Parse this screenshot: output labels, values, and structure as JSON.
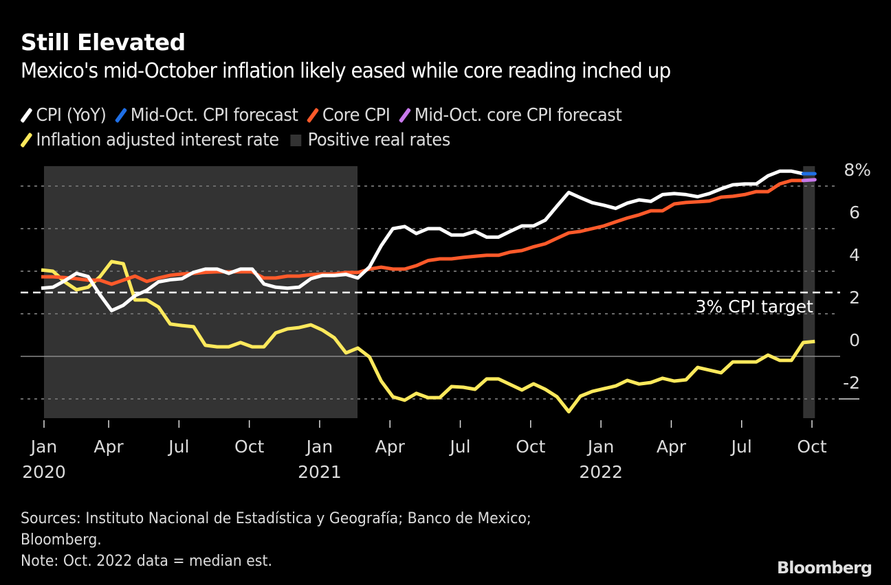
{
  "chart_data": {
    "type": "line",
    "title": "Still Elevated",
    "subtitle": "Mexico's mid-October inflation likely eased while core reading inched up",
    "frequency": "semi-monthly (first and second half of each month), Jan 2020 (1H) to Oct 2022 (2H)",
    "ylabel": "%",
    "ylim": [
      -2.5,
      9
    ],
    "yticks": [
      -2,
      0,
      2,
      4,
      6,
      8
    ],
    "ytick_labels": [
      "-2",
      "0",
      "2",
      "4",
      "6",
      "8%"
    ],
    "xticks": [
      {
        "label": "Jan",
        "year": "2020",
        "index": 0
      },
      {
        "label": "Apr",
        "year": "",
        "index": 6
      },
      {
        "label": "Jul",
        "year": "",
        "index": 12
      },
      {
        "label": "Oct",
        "year": "",
        "index": 18
      },
      {
        "label": "Jan",
        "year": "2021",
        "index": 24
      },
      {
        "label": "Apr",
        "year": "",
        "index": 30
      },
      {
        "label": "Jul",
        "year": "",
        "index": 36
      },
      {
        "label": "Oct",
        "year": "",
        "index": 42
      },
      {
        "label": "Jan",
        "year": "2022",
        "index": 48
      },
      {
        "label": "Apr",
        "year": "",
        "index": 54
      },
      {
        "label": "Jul",
        "year": "",
        "index": 60
      },
      {
        "label": "Oct",
        "year": "",
        "index": 66
      }
    ],
    "n_points": 67,
    "grid": true,
    "legend_position": "top-left",
    "reference_line": {
      "value": 3,
      "label": "3% CPI target",
      "style": "dashed"
    },
    "shaded_regions": [
      {
        "name": "Positive real rates",
        "start_index": 0,
        "end_index": 27.3
      },
      {
        "name": "Oct. 2022 estimate",
        "start_index": 65,
        "end_index": 66
      }
    ],
    "series": [
      {
        "name": "CPI (YoY)",
        "color": "#ffffff",
        "start_index": 0,
        "values": [
          3.2,
          3.25,
          3.55,
          3.9,
          3.75,
          2.9,
          2.15,
          2.4,
          2.85,
          3.1,
          3.5,
          3.6,
          3.65,
          3.95,
          4.1,
          4.1,
          3.9,
          4.1,
          4.1,
          3.4,
          3.25,
          3.2,
          3.25,
          3.65,
          3.8,
          3.8,
          3.85,
          3.68,
          4.2,
          5.2,
          6.0,
          6.1,
          5.77,
          6.0,
          6.0,
          5.7,
          5.7,
          5.87,
          5.6,
          5.6,
          5.87,
          6.13,
          6.13,
          6.4,
          7.06,
          7.7,
          7.45,
          7.22,
          7.1,
          6.95,
          7.2,
          7.35,
          7.28,
          7.6,
          7.65,
          7.6,
          7.5,
          7.65,
          7.87,
          8.06,
          8.1,
          8.1,
          8.48,
          8.7,
          8.7,
          8.58
        ]
      },
      {
        "name": "Mid-Oct. CPI forecast",
        "color": "#1f6fe6",
        "start_index": 65,
        "values": [
          8.58,
          8.58
        ]
      },
      {
        "name": "Core CPI",
        "color": "#ff5a2a",
        "start_index": 0,
        "values": [
          3.74,
          3.74,
          3.7,
          3.65,
          3.58,
          3.58,
          3.39,
          3.58,
          3.77,
          3.52,
          3.68,
          3.81,
          3.87,
          3.9,
          3.95,
          3.97,
          3.97,
          3.97,
          3.97,
          3.68,
          3.68,
          3.77,
          3.77,
          3.84,
          3.87,
          3.87,
          3.94,
          3.94,
          4.1,
          4.19,
          4.1,
          4.1,
          4.26,
          4.5,
          4.58,
          4.58,
          4.65,
          4.7,
          4.75,
          4.75,
          4.9,
          4.97,
          5.15,
          5.29,
          5.55,
          5.8,
          5.87,
          6.0,
          6.13,
          6.32,
          6.5,
          6.65,
          6.84,
          6.84,
          7.16,
          7.23,
          7.26,
          7.3,
          7.48,
          7.52,
          7.6,
          7.74,
          7.74,
          8.1,
          8.26,
          8.26
        ]
      },
      {
        "name": "Mid-Oct. core CPI forecast",
        "color": "#c878ec",
        "start_index": 65,
        "values": [
          8.26,
          8.3
        ]
      },
      {
        "name": "Inflation adjusted interest rate",
        "color": "#fde95c",
        "start_index": 0,
        "values": [
          4.06,
          4.0,
          3.5,
          3.13,
          3.25,
          3.74,
          4.45,
          4.35,
          2.65,
          2.65,
          2.32,
          1.52,
          1.45,
          1.39,
          0.52,
          0.45,
          0.45,
          0.65,
          0.45,
          0.45,
          1.1,
          1.29,
          1.35,
          1.48,
          1.23,
          0.87,
          0.16,
          0.39,
          -0.03,
          -1.16,
          -1.9,
          -2.06,
          -1.74,
          -1.94,
          -1.94,
          -1.42,
          -1.45,
          -1.55,
          -1.06,
          -1.06,
          -1.32,
          -1.58,
          -1.29,
          -1.55,
          -1.9,
          -2.6,
          -1.87,
          -1.65,
          -1.52,
          -1.39,
          -1.13,
          -1.3,
          -1.23,
          -1.03,
          -1.16,
          -1.1,
          -0.52,
          -0.65,
          -0.77,
          -0.26,
          -0.26,
          -0.26,
          0.06,
          -0.19,
          -0.19,
          0.65,
          0.7
        ]
      }
    ]
  },
  "legend": {
    "items": [
      {
        "label": "CPI (YoY)",
        "color": "#ffffff",
        "kind": "line"
      },
      {
        "label": "Mid-Oct. CPI forecast",
        "color": "#1f6fe6",
        "kind": "line"
      },
      {
        "label": "Core CPI",
        "color": "#ff5a2a",
        "kind": "line"
      },
      {
        "label": "Mid-Oct. core CPI forecast",
        "color": "#c878ec",
        "kind": "line"
      },
      {
        "label": "Inflation adjusted interest rate",
        "color": "#fde95c",
        "kind": "line"
      },
      {
        "label": "Positive real rates",
        "color": "#333333",
        "kind": "box"
      }
    ]
  },
  "footer": {
    "sources_line1": "Sources: Instituto Nacional de Estadística y Geografía; Banco de Mexico;",
    "sources_line2": "Bloomberg.",
    "note": "Note: Oct. 2022 data = median est."
  },
  "brand": "Bloomberg"
}
